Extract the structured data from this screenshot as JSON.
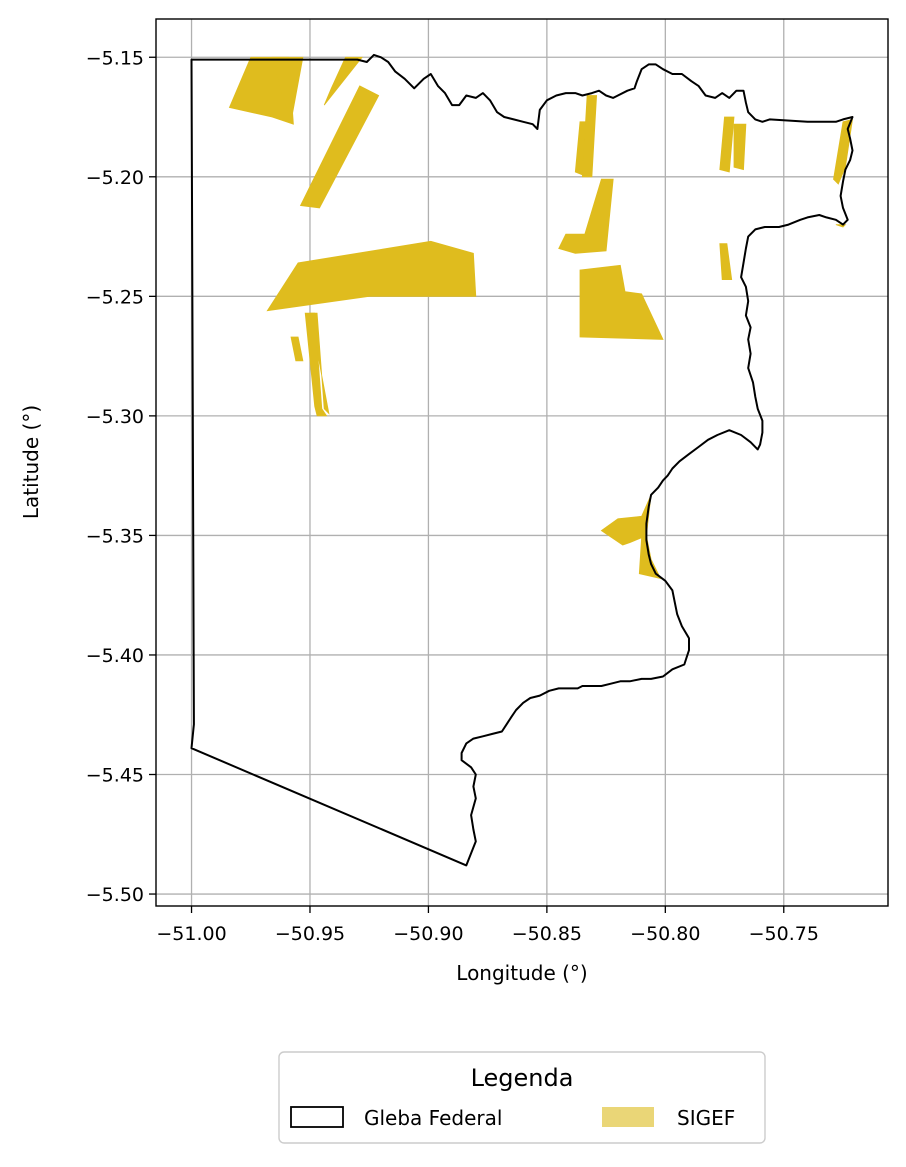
{
  "chart_data": {
    "type": "map",
    "xlabel": "Longitude (°)",
    "ylabel": "Latitude (°)",
    "xlim": [
      -51.015,
      -50.706
    ],
    "ylim": [
      -5.505,
      -5.134
    ],
    "xticks": [
      -51.0,
      -50.95,
      -50.9,
      -50.85,
      -50.8,
      -50.75
    ],
    "xtick_labels": [
      "−51.00",
      "−50.95",
      "−50.90",
      "−50.85",
      "−50.80",
      "−50.75"
    ],
    "yticks": [
      -5.15,
      -5.2,
      -5.25,
      -5.3,
      -5.35,
      -5.4,
      -5.45,
      -5.5
    ],
    "ytick_labels": [
      "−5.15",
      "−5.20",
      "−5.25",
      "−5.30",
      "−5.35",
      "−5.40",
      "−5.45",
      "−5.50"
    ],
    "grid": true,
    "legend": {
      "title": "Legenda",
      "placement": "bottom-center-below-axes",
      "entries": [
        {
          "label": "Gleba Federal",
          "style": "outline"
        },
        {
          "label": "SIGEF",
          "style": "fill"
        }
      ]
    },
    "colors": {
      "gleba_edge": "#000000",
      "sigef_fill": "#dfbc1e",
      "sigef_legend_fill": "#ead677",
      "grid": "#b0b0b0"
    },
    "gleba_federal": [
      [
        -51.0,
        -5.151
      ],
      [
        -50.93,
        -5.151
      ],
      [
        -50.926,
        -5.152
      ],
      [
        -50.923,
        -5.149
      ],
      [
        -50.92,
        -5.15
      ],
      [
        -50.917,
        -5.152
      ],
      [
        -50.914,
        -5.156
      ],
      [
        -50.91,
        -5.159
      ],
      [
        -50.906,
        -5.163
      ],
      [
        -50.902,
        -5.159
      ],
      [
        -50.899,
        -5.157
      ],
      [
        -50.896,
        -5.162
      ],
      [
        -50.893,
        -5.165
      ],
      [
        -50.89,
        -5.17
      ],
      [
        -50.887,
        -5.17
      ],
      [
        -50.884,
        -5.166
      ],
      [
        -50.88,
        -5.167
      ],
      [
        -50.877,
        -5.165
      ],
      [
        -50.874,
        -5.168
      ],
      [
        -50.871,
        -5.173
      ],
      [
        -50.868,
        -5.175
      ],
      [
        -50.864,
        -5.176
      ],
      [
        -50.86,
        -5.177
      ],
      [
        -50.856,
        -5.178
      ],
      [
        -50.854,
        -5.18
      ],
      [
        -50.853,
        -5.172
      ],
      [
        -50.85,
        -5.168
      ],
      [
        -50.846,
        -5.166
      ],
      [
        -50.842,
        -5.165
      ],
      [
        -50.838,
        -5.165
      ],
      [
        -50.835,
        -5.166
      ],
      [
        -50.831,
        -5.165
      ],
      [
        -50.828,
        -5.164
      ],
      [
        -50.825,
        -5.166
      ],
      [
        -50.822,
        -5.167
      ],
      [
        -50.82,
        -5.166
      ],
      [
        -50.816,
        -5.164
      ],
      [
        -50.813,
        -5.163
      ],
      [
        -50.812,
        -5.16
      ],
      [
        -50.81,
        -5.155
      ],
      [
        -50.807,
        -5.153
      ],
      [
        -50.804,
        -5.153
      ],
      [
        -50.801,
        -5.155
      ],
      [
        -50.797,
        -5.157
      ],
      [
        -50.793,
        -5.157
      ],
      [
        -50.789,
        -5.16
      ],
      [
        -50.786,
        -5.162
      ],
      [
        -50.783,
        -5.166
      ],
      [
        -50.779,
        -5.167
      ],
      [
        -50.776,
        -5.165
      ],
      [
        -50.773,
        -5.167
      ],
      [
        -50.77,
        -5.164
      ],
      [
        -50.767,
        -5.164
      ],
      [
        -50.766,
        -5.169
      ],
      [
        -50.765,
        -5.173
      ],
      [
        -50.762,
        -5.176
      ],
      [
        -50.759,
        -5.177
      ],
      [
        -50.756,
        -5.176
      ],
      [
        -50.74,
        -5.177
      ],
      [
        -50.728,
        -5.177
      ],
      [
        -50.725,
        -5.176
      ],
      [
        -50.721,
        -5.175
      ],
      [
        -50.723,
        -5.18
      ],
      [
        -50.722,
        -5.184
      ],
      [
        -50.721,
        -5.189
      ],
      [
        -50.722,
        -5.193
      ],
      [
        -50.724,
        -5.197
      ],
      [
        -50.725,
        -5.202
      ],
      [
        -50.726,
        -5.208
      ],
      [
        -50.725,
        -5.213
      ],
      [
        -50.723,
        -5.218
      ],
      [
        -50.725,
        -5.22
      ],
      [
        -50.728,
        -5.218
      ],
      [
        -50.732,
        -5.217
      ],
      [
        -50.735,
        -5.216
      ],
      [
        -50.74,
        -5.217
      ],
      [
        -50.743,
        -5.218
      ],
      [
        -50.748,
        -5.22
      ],
      [
        -50.752,
        -5.221
      ],
      [
        -50.758,
        -5.221
      ],
      [
        -50.762,
        -5.222
      ],
      [
        -50.765,
        -5.225
      ],
      [
        -50.766,
        -5.23
      ],
      [
        -50.767,
        -5.236
      ],
      [
        -50.768,
        -5.242
      ],
      [
        -50.766,
        -5.246
      ],
      [
        -50.765,
        -5.252
      ],
      [
        -50.766,
        -5.258
      ],
      [
        -50.764,
        -5.263
      ],
      [
        -50.765,
        -5.268
      ],
      [
        -50.764,
        -5.274
      ],
      [
        -50.765,
        -5.28
      ],
      [
        -50.763,
        -5.286
      ],
      [
        -50.762,
        -5.292
      ],
      [
        -50.761,
        -5.297
      ],
      [
        -50.759,
        -5.302
      ],
      [
        -50.759,
        -5.307
      ],
      [
        -50.76,
        -5.312
      ],
      [
        -50.761,
        -5.314
      ],
      [
        -50.764,
        -5.311
      ],
      [
        -50.768,
        -5.308
      ],
      [
        -50.773,
        -5.306
      ],
      [
        -50.778,
        -5.308
      ],
      [
        -50.782,
        -5.31
      ],
      [
        -50.786,
        -5.313
      ],
      [
        -50.79,
        -5.316
      ],
      [
        -50.794,
        -5.319
      ],
      [
        -50.797,
        -5.322
      ],
      [
        -50.799,
        -5.325
      ],
      [
        -50.801,
        -5.327
      ],
      [
        -50.803,
        -5.33
      ],
      [
        -50.806,
        -5.333
      ],
      [
        -50.807,
        -5.338
      ],
      [
        -50.808,
        -5.345
      ],
      [
        -50.808,
        -5.352
      ],
      [
        -50.807,
        -5.358
      ],
      [
        -50.806,
        -5.362
      ],
      [
        -50.804,
        -5.366
      ],
      [
        -50.8,
        -5.369
      ],
      [
        -50.797,
        -5.373
      ],
      [
        -50.796,
        -5.378
      ],
      [
        -50.795,
        -5.383
      ],
      [
        -50.793,
        -5.388
      ],
      [
        -50.79,
        -5.393
      ],
      [
        -50.79,
        -5.398
      ],
      [
        -50.791,
        -5.401
      ],
      [
        -50.792,
        -5.404
      ],
      [
        -50.797,
        -5.406
      ],
      [
        -50.801,
        -5.409
      ],
      [
        -50.806,
        -5.41
      ],
      [
        -50.81,
        -5.41
      ],
      [
        -50.815,
        -5.411
      ],
      [
        -50.819,
        -5.411
      ],
      [
        -50.823,
        -5.412
      ],
      [
        -50.827,
        -5.413
      ],
      [
        -50.831,
        -5.413
      ],
      [
        -50.835,
        -5.413
      ],
      [
        -50.837,
        -5.414
      ],
      [
        -50.841,
        -5.414
      ],
      [
        -50.845,
        -5.414
      ],
      [
        -50.849,
        -5.415
      ],
      [
        -50.853,
        -5.417
      ],
      [
        -50.857,
        -5.418
      ],
      [
        -50.86,
        -5.42
      ],
      [
        -50.863,
        -5.423
      ],
      [
        -50.865,
        -5.426
      ],
      [
        -50.867,
        -5.429
      ],
      [
        -50.869,
        -5.432
      ],
      [
        -50.873,
        -5.433
      ],
      [
        -50.877,
        -5.434
      ],
      [
        -50.881,
        -5.435
      ],
      [
        -50.884,
        -5.437
      ],
      [
        -50.886,
        -5.441
      ],
      [
        -50.886,
        -5.444
      ],
      [
        -50.882,
        -5.447
      ],
      [
        -50.88,
        -5.45
      ],
      [
        -50.881,
        -5.455
      ],
      [
        -50.88,
        -5.46
      ],
      [
        -50.882,
        -5.467
      ],
      [
        -50.881,
        -5.473
      ],
      [
        -50.88,
        -5.478
      ],
      [
        -50.884,
        -5.488
      ],
      [
        -51.0,
        -5.439
      ],
      [
        -50.999,
        -5.429
      ],
      [
        -51.0,
        -5.151
      ]
    ],
    "sigef": [
      [
        [
          -50.984,
          -5.171
        ],
        [
          -50.975,
          -5.15
        ],
        [
          -50.959,
          -5.15
        ],
        [
          -50.957,
          -5.178
        ],
        [
          -50.966,
          -5.175
        ]
      ],
      [
        [
          -50.966,
          -5.15
        ],
        [
          -50.953,
          -5.15
        ],
        [
          -50.958,
          -5.177
        ],
        [
          -50.962,
          -5.165
        ]
      ],
      [
        [
          -50.928,
          -5.15
        ],
        [
          -50.935,
          -5.15
        ],
        [
          -50.941,
          -5.163
        ],
        [
          -50.944,
          -5.17
        ]
      ],
      [
        [
          -50.929,
          -5.162
        ],
        [
          -50.921,
          -5.166
        ],
        [
          -50.946,
          -5.213
        ],
        [
          -50.954,
          -5.212
        ]
      ],
      [
        [
          -50.968,
          -5.256
        ],
        [
          -50.955,
          -5.236
        ],
        [
          -50.899,
          -5.227
        ],
        [
          -50.881,
          -5.232
        ],
        [
          -50.88,
          -5.25
        ],
        [
          -50.925,
          -5.25
        ]
      ],
      [
        [
          -50.952,
          -5.257
        ],
        [
          -50.948,
          -5.257
        ],
        [
          -50.945,
          -5.297
        ],
        [
          -50.943,
          -5.3
        ],
        [
          -50.947,
          -5.3
        ],
        [
          -50.948,
          -5.296
        ]
      ],
      [
        [
          -50.95,
          -5.257
        ],
        [
          -50.947,
          -5.257
        ],
        [
          -50.944,
          -5.297
        ],
        [
          -50.942,
          -5.299
        ]
      ],
      [
        [
          -50.958,
          -5.267
        ],
        [
          -50.955,
          -5.267
        ],
        [
          -50.953,
          -5.277
        ],
        [
          -50.956,
          -5.277
        ]
      ],
      [
        [
          -50.836,
          -5.177
        ],
        [
          -50.832,
          -5.177
        ],
        [
          -50.833,
          -5.2
        ],
        [
          -50.838,
          -5.198
        ]
      ],
      [
        [
          -50.833,
          -5.166
        ],
        [
          -50.829,
          -5.166
        ],
        [
          -50.831,
          -5.2
        ],
        [
          -50.835,
          -5.2
        ]
      ],
      [
        [
          -50.845,
          -5.23
        ],
        [
          -50.842,
          -5.224
        ],
        [
          -50.834,
          -5.224
        ],
        [
          -50.827,
          -5.201
        ],
        [
          -50.822,
          -5.201
        ],
        [
          -50.825,
          -5.231
        ],
        [
          -50.838,
          -5.232
        ]
      ],
      [
        [
          -50.836,
          -5.239
        ],
        [
          -50.819,
          -5.237
        ],
        [
          -50.817,
          -5.248
        ],
        [
          -50.81,
          -5.249
        ],
        [
          -50.801,
          -5.268
        ],
        [
          -50.836,
          -5.267
        ]
      ],
      [
        [
          -50.775,
          -5.175
        ],
        [
          -50.771,
          -5.175
        ],
        [
          -50.773,
          -5.198
        ],
        [
          -50.777,
          -5.197
        ]
      ],
      [
        [
          -50.771,
          -5.178
        ],
        [
          -50.766,
          -5.178
        ],
        [
          -50.767,
          -5.197
        ],
        [
          -50.771,
          -5.196
        ]
      ],
      [
        [
          -50.777,
          -5.228
        ],
        [
          -50.774,
          -5.228
        ],
        [
          -50.772,
          -5.243
        ],
        [
          -50.776,
          -5.243
        ]
      ],
      [
        [
          -50.725,
          -5.177
        ],
        [
          -50.721,
          -5.176
        ],
        [
          -50.724,
          -5.196
        ],
        [
          -50.727,
          -5.203
        ],
        [
          -50.729,
          -5.201
        ]
      ],
      [
        [
          -50.728,
          -5.22
        ],
        [
          -50.724,
          -5.22
        ],
        [
          -50.725,
          -5.221
        ]
      ],
      [
        [
          -50.827,
          -5.348
        ],
        [
          -50.82,
          -5.343
        ],
        [
          -50.81,
          -5.342
        ],
        [
          -50.806,
          -5.333
        ],
        [
          -50.808,
          -5.35
        ],
        [
          -50.806,
          -5.36
        ],
        [
          -50.802,
          -5.368
        ],
        [
          -50.811,
          -5.366
        ],
        [
          -50.81,
          -5.351
        ],
        [
          -50.815,
          -5.353
        ],
        [
          -50.818,
          -5.354
        ]
      ]
    ]
  }
}
